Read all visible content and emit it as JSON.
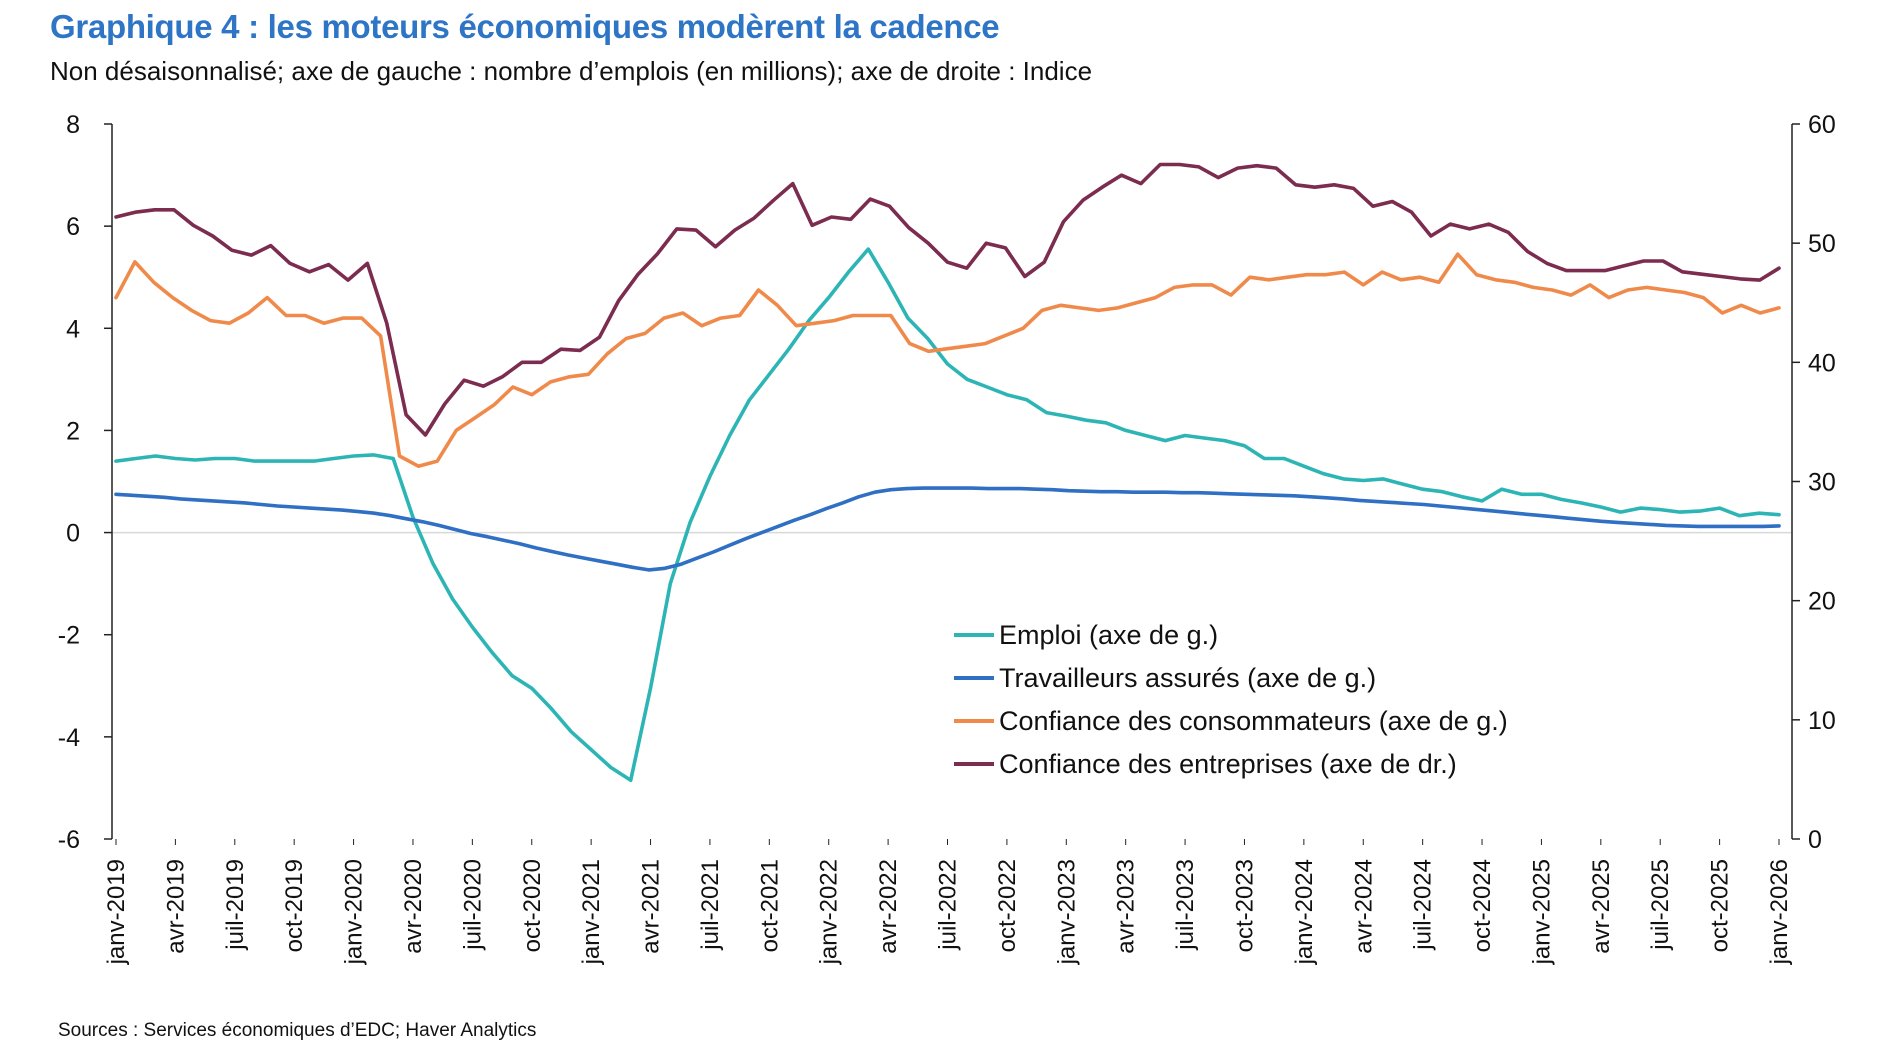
{
  "title": "Graphique 4 : les moteurs économiques modèrent la cadence",
  "subtitle": "Non désaisonnalisé; axe de gauche : nombre d’emplois (en millions); axe de droite : Indice",
  "source": "Sources : Services économiques d’EDC; Haver Analytics",
  "chart_data": {
    "type": "line",
    "x_tick_labels": [
      "janv-2019",
      "avr-2019",
      "juil-2019",
      "oct-2019",
      "janv-2020",
      "avr-2020",
      "juil-2020",
      "oct-2020",
      "janv-2021",
      "avr-2021",
      "juil-2021",
      "oct-2021",
      "janv-2022",
      "avr-2022",
      "juil-2022",
      "oct-2022",
      "janv-2023",
      "avr-2023",
      "juil-2023",
      "oct-2023",
      "janv-2024",
      "avr-2024",
      "juil-2024",
      "oct-2024",
      "janv-2025",
      "avr-2025",
      "juil-2025",
      "oct-2025",
      "janv-2026"
    ],
    "x_start": "janv-2019",
    "x_end": "janv-2026",
    "y_left": {
      "min": -6,
      "max": 8,
      "ticks": [
        "-6",
        "-4",
        "-2",
        "0",
        "2",
        "4",
        "6",
        "8"
      ]
    },
    "y_right": {
      "min": 0,
      "max": 60,
      "ticks": [
        "0",
        "10",
        "20",
        "30",
        "40",
        "50",
        "60"
      ]
    },
    "zero_line": true,
    "grid": false,
    "legend_position": "bottom-right",
    "series": [
      {
        "name": "Emploi  (axe de g.)",
        "axis": "left",
        "color": "#2DB5B6",
        "values": [
          1.4,
          1.45,
          1.5,
          1.45,
          1.42,
          1.45,
          1.45,
          1.4,
          1.4,
          1.4,
          1.4,
          1.45,
          1.5,
          1.52,
          1.45,
          0.3,
          -0.6,
          -1.3,
          -1.85,
          -2.35,
          -2.8,
          -3.05,
          -3.45,
          -3.9,
          -4.25,
          -4.6,
          -4.85,
          -3.05,
          -1.0,
          0.2,
          1.1,
          1.9,
          2.6,
          3.1,
          3.6,
          4.15,
          4.6,
          5.1,
          5.55,
          4.9,
          4.2,
          3.8,
          3.3,
          3.0,
          2.85,
          2.7,
          2.6,
          2.35,
          2.28,
          2.2,
          2.15,
          2.0,
          1.9,
          1.8,
          1.9,
          1.85,
          1.8,
          1.7,
          1.45,
          1.45,
          1.3,
          1.15,
          1.05,
          1.02,
          1.05,
          0.95,
          0.85,
          0.8,
          0.7,
          0.62,
          0.85,
          0.75,
          0.75,
          0.65,
          0.58,
          0.5,
          0.4,
          0.48,
          0.45,
          0.4,
          0.42,
          0.48,
          0.33,
          0.38,
          0.35
        ]
      },
      {
        "name": "Travailleurs assurés (axe de g.)",
        "axis": "left",
        "color": "#2F6FC4",
        "values": [
          0.75,
          0.73,
          0.71,
          0.69,
          0.66,
          0.64,
          0.62,
          0.6,
          0.58,
          0.55,
          0.52,
          0.5,
          0.48,
          0.46,
          0.44,
          0.41,
          0.38,
          0.33,
          0.27,
          0.21,
          0.14,
          0.06,
          -0.02,
          -0.08,
          -0.15,
          -0.22,
          -0.3,
          -0.37,
          -0.44,
          -0.5,
          -0.56,
          -0.62,
          -0.68,
          -0.73,
          -0.7,
          -0.62,
          -0.5,
          -0.38,
          -0.25,
          -0.12,
          0.0,
          0.12,
          0.24,
          0.35,
          0.47,
          0.58,
          0.7,
          0.79,
          0.84,
          0.86,
          0.87,
          0.87,
          0.87,
          0.87,
          0.86,
          0.86,
          0.86,
          0.85,
          0.84,
          0.82,
          0.81,
          0.8,
          0.8,
          0.79,
          0.79,
          0.79,
          0.78,
          0.78,
          0.77,
          0.76,
          0.75,
          0.74,
          0.73,
          0.72,
          0.7,
          0.68,
          0.66,
          0.63,
          0.61,
          0.59,
          0.57,
          0.55,
          0.52,
          0.49,
          0.46,
          0.43,
          0.4,
          0.37,
          0.34,
          0.31,
          0.28,
          0.25,
          0.22,
          0.2,
          0.18,
          0.16,
          0.14,
          0.13,
          0.12,
          0.12,
          0.12,
          0.12,
          0.12,
          0.13
        ]
      },
      {
        "name": "Confiance des consommateurs (axe de g.)",
        "axis": "left",
        "color": "#F08A4B",
        "values": [
          4.6,
          5.3,
          4.9,
          4.6,
          4.35,
          4.15,
          4.1,
          4.3,
          4.6,
          4.25,
          4.25,
          4.1,
          4.2,
          4.2,
          3.85,
          1.5,
          1.3,
          1.4,
          2.0,
          2.25,
          2.5,
          2.85,
          2.7,
          2.95,
          3.05,
          3.1,
          3.5,
          3.8,
          3.9,
          4.2,
          4.3,
          4.05,
          4.2,
          4.25,
          4.75,
          4.45,
          4.05,
          4.1,
          4.15,
          4.25,
          4.25,
          4.25,
          3.7,
          3.55,
          3.6,
          3.65,
          3.7,
          3.85,
          4.0,
          4.35,
          4.45,
          4.4,
          4.35,
          4.4,
          4.5,
          4.6,
          4.8,
          4.85,
          4.85,
          4.65,
          5.0,
          4.95,
          5.0,
          5.05,
          5.05,
          5.1,
          4.85,
          5.1,
          4.95,
          5.0,
          4.9,
          5.45,
          5.05,
          4.95,
          4.9,
          4.8,
          4.75,
          4.65,
          4.85,
          4.6,
          4.75,
          4.8,
          4.75,
          4.7,
          4.6,
          4.3,
          4.45,
          4.3,
          4.4
        ]
      },
      {
        "name": "Confiance des entreprises (axe de dr.)",
        "axis": "right",
        "color": "#7B2C4F",
        "values": [
          52.2,
          52.6,
          52.8,
          52.8,
          51.5,
          50.6,
          49.4,
          49.0,
          49.8,
          48.3,
          47.6,
          48.2,
          46.9,
          48.3,
          43.3,
          35.6,
          33.9,
          36.5,
          38.5,
          38.0,
          38.8,
          40.0,
          40.0,
          41.1,
          41.0,
          42.1,
          45.2,
          47.4,
          49.1,
          51.2,
          51.1,
          49.7,
          51.1,
          52.1,
          53.6,
          55.0,
          51.5,
          52.2,
          52.0,
          53.7,
          53.1,
          51.3,
          50.0,
          48.4,
          47.9,
          50.0,
          49.6,
          47.2,
          48.4,
          51.8,
          53.6,
          54.7,
          55.7,
          55.0,
          56.6,
          56.6,
          56.4,
          55.5,
          56.3,
          56.5,
          56.3,
          54.9,
          54.7,
          54.9,
          54.6,
          53.1,
          53.5,
          52.6,
          50.6,
          51.6,
          51.2,
          51.6,
          50.9,
          49.3,
          48.3,
          47.7,
          47.7,
          47.7,
          48.1,
          48.5,
          48.5,
          47.6,
          47.4,
          47.2,
          47.0,
          46.9,
          47.9
        ]
      }
    ]
  },
  "colors": {
    "title": "#2E75C6",
    "zero_line": "#D9D9D9",
    "axis": "#222222"
  }
}
